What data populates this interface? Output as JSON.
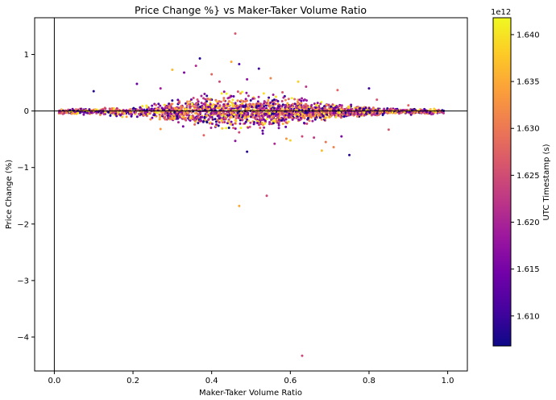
{
  "chart_data": {
    "type": "scatter",
    "title": "Price Change %} vs Maker-Taker Volume Ratio",
    "xlabel": "Maker-Taker Volume Ratio",
    "ylabel": "Price Change (%)",
    "xlim": [
      -0.05,
      1.05
    ],
    "ylim": [
      -4.6,
      1.65
    ],
    "x_ticks": [
      0.0,
      0.2,
      0.4,
      0.6,
      0.8,
      1.0
    ],
    "x_tick_labels": [
      "0.0",
      "0.2",
      "0.4",
      "0.6",
      "0.8",
      "1.0"
    ],
    "y_ticks": [
      1,
      0,
      -1,
      -2,
      -3,
      -4
    ],
    "y_tick_labels": [
      "1",
      "0",
      "−1",
      "−2",
      "−3",
      "−4"
    ],
    "reference_lines": {
      "horizontal_y": 0,
      "vertical_x": 0
    },
    "grid": false,
    "colorbar": {
      "label": "UTC Timestamp (s)",
      "colormap": "plasma",
      "range": [
        1606800000000.0,
        1641800000000.0
      ],
      "offset_label": "1e12",
      "ticks": [
        1.61,
        1.615,
        1.62,
        1.625,
        1.63,
        1.635,
        1.64
      ],
      "tick_labels": [
        "1.610",
        "1.615",
        "1.620",
        "1.625",
        "1.630",
        "1.635",
        "1.640"
      ],
      "colors": [
        "#0d0887",
        "#46039f",
        "#7201a8",
        "#9c179e",
        "#bd3786",
        "#d8576b",
        "#ed7953",
        "#fb9f3a",
        "#fdca26",
        "#f0f921"
      ]
    },
    "points": [
      [
        0.46,
        1.37,
        0.55
      ],
      [
        0.37,
        0.93,
        0.05
      ],
      [
        0.47,
        0.83,
        0.15
      ],
      [
        0.52,
        0.75,
        0.1
      ],
      [
        0.45,
        0.87,
        0.8
      ],
      [
        0.36,
        0.8,
        0.4
      ],
      [
        0.3,
        0.73,
        0.85
      ],
      [
        0.33,
        0.68,
        0.25
      ],
      [
        0.4,
        0.65,
        0.6
      ],
      [
        0.55,
        0.58,
        0.7
      ],
      [
        0.49,
        0.56,
        0.3
      ],
      [
        0.42,
        0.52,
        0.5
      ],
      [
        0.21,
        0.48,
        0.2
      ],
      [
        0.27,
        0.4,
        0.35
      ],
      [
        0.64,
        0.43,
        0.45
      ],
      [
        0.72,
        0.37,
        0.6
      ],
      [
        0.8,
        0.4,
        0.1
      ],
      [
        0.1,
        0.35,
        0.05
      ],
      [
        0.62,
        0.52,
        0.9
      ],
      [
        0.58,
        0.33,
        0.55
      ],
      [
        0.82,
        0.2,
        0.55
      ],
      [
        0.9,
        0.1,
        0.6
      ],
      [
        0.49,
        -0.72,
        0.05
      ],
      [
        0.46,
        -0.53,
        0.3
      ],
      [
        0.68,
        -0.7,
        0.85
      ],
      [
        0.75,
        -0.78,
        0.05
      ],
      [
        0.71,
        -0.64,
        0.7
      ],
      [
        0.56,
        -0.58,
        0.4
      ],
      [
        0.6,
        -0.52,
        0.9
      ],
      [
        0.59,
        -0.49,
        0.75
      ],
      [
        0.66,
        -0.47,
        0.45
      ],
      [
        0.63,
        -0.45,
        0.5
      ],
      [
        0.73,
        -0.45,
        0.25
      ],
      [
        0.38,
        -0.43,
        0.6
      ],
      [
        0.53,
        -0.4,
        0.2
      ],
      [
        0.85,
        -0.33,
        0.55
      ],
      [
        0.69,
        -0.55,
        0.65
      ],
      [
        0.27,
        -0.32,
        0.75
      ],
      [
        0.47,
        -1.68,
        0.8
      ],
      [
        0.54,
        -1.5,
        0.5
      ],
      [
        0.63,
        -4.33,
        0.5
      ]
    ]
  }
}
